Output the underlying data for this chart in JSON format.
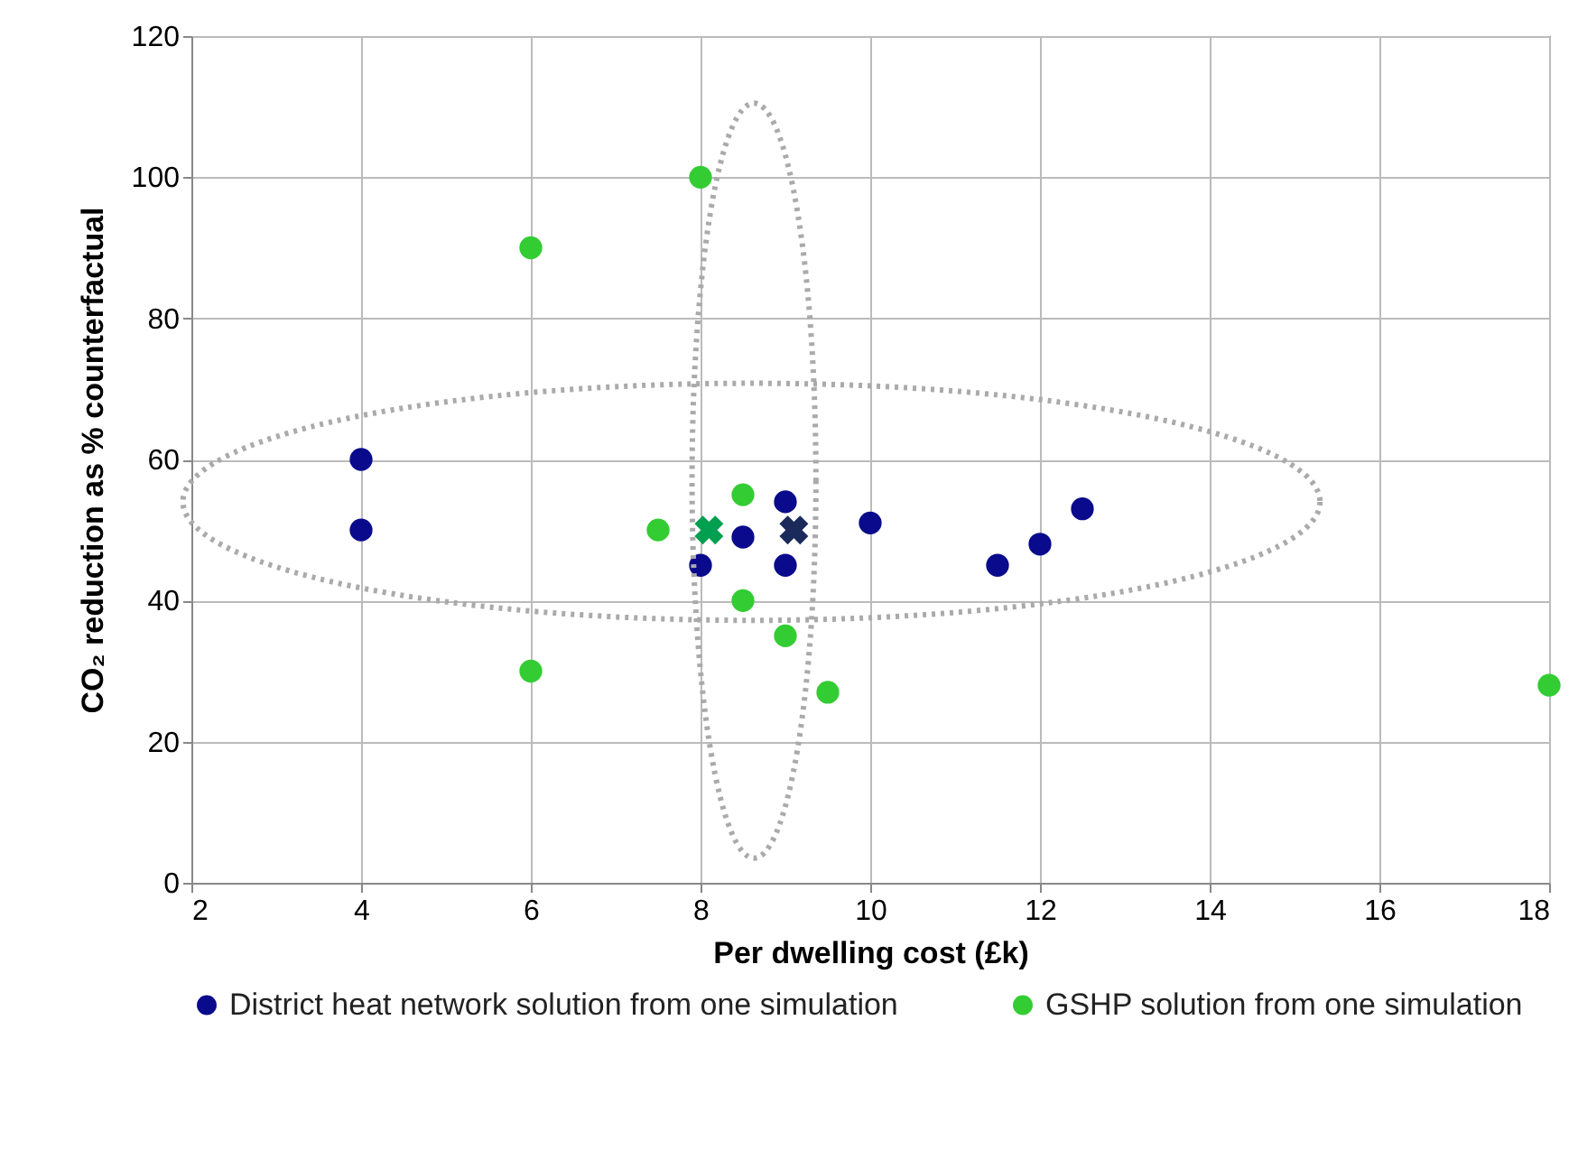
{
  "chart_data": {
    "type": "scatter",
    "xlabel": "Per dwelling cost (£k)",
    "ylabel": "CO₂ reduction as % counterfactual",
    "xlim": [
      2,
      18
    ],
    "xticks": [
      2,
      4,
      6,
      8,
      10,
      12,
      14,
      16,
      18
    ],
    "ylim": [
      0,
      120
    ],
    "yticks": [
      0,
      20,
      40,
      60,
      80,
      100,
      120
    ],
    "grid": true,
    "legend": "bottom",
    "marker": "circle",
    "series": [
      {
        "name": "District heat network solution from one simulation",
        "color": "#0a0a8c",
        "x": [
          4,
          4,
          8,
          8.5,
          9,
          9,
          10,
          11.5,
          12,
          12.5
        ],
        "values": [
          60,
          50,
          45,
          49,
          54,
          45,
          51,
          45,
          48,
          53
        ]
      },
      {
        "name": "GSHP solution from one simulation",
        "color": "#33cc33",
        "x": [
          6,
          6,
          7.5,
          8,
          8.5,
          8.5,
          9,
          9.5,
          18
        ],
        "values": [
          90,
          30,
          50,
          100,
          55,
          40,
          35,
          27,
          28
        ]
      },
      {
        "color": "#1a2a5a",
        "marker": "cross",
        "x": [
          9.1
        ],
        "values": [
          50
        ]
      },
      {
        "color": "#00a050",
        "marker": "cross",
        "x": [
          8.1
        ],
        "values": [
          50
        ]
      }
    ]
  }
}
